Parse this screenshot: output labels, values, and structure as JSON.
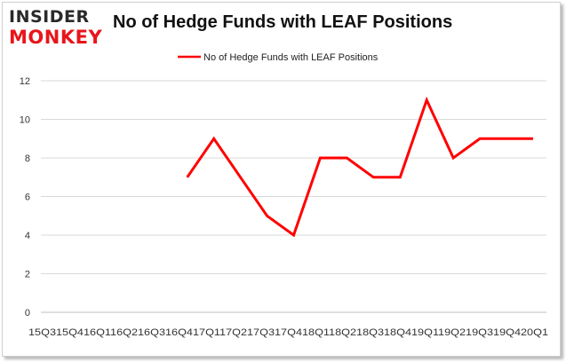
{
  "logo": {
    "line1": "INSIDER",
    "line2": "MONKEY"
  },
  "chart_data": {
    "type": "line",
    "title": "No of Hedge Funds with LEAF Positions",
    "xlabel": "",
    "ylabel": "",
    "categories": [
      "2015Q3",
      "2015Q4",
      "2016Q1",
      "2016Q2",
      "2016Q3",
      "2016Q4",
      "2017Q1",
      "2017Q2",
      "2017Q3",
      "2017Q4",
      "2018Q1",
      "2018Q2",
      "2018Q3",
      "2018Q4",
      "2019Q1",
      "2019Q2",
      "2019Q3",
      "2019Q4",
      "2020Q1"
    ],
    "xtick_text": "15Q315Q416Q116Q216Q316Q417Q117Q217Q317Q418Q118Q218Q318Q419Q119Q219Q319Q420Q1",
    "series": [
      {
        "name": "No of Hedge Funds with LEAF Positions",
        "color": "#ff0000",
        "values": [
          null,
          null,
          null,
          null,
          null,
          7,
          9,
          7,
          5,
          4,
          8,
          8,
          7,
          7,
          11,
          8,
          9,
          9,
          9
        ]
      }
    ],
    "ylim": [
      0,
      12
    ],
    "yticks": [
      0,
      2,
      4,
      6,
      8,
      10,
      12
    ],
    "grid": true,
    "legend_position": "top-center"
  }
}
